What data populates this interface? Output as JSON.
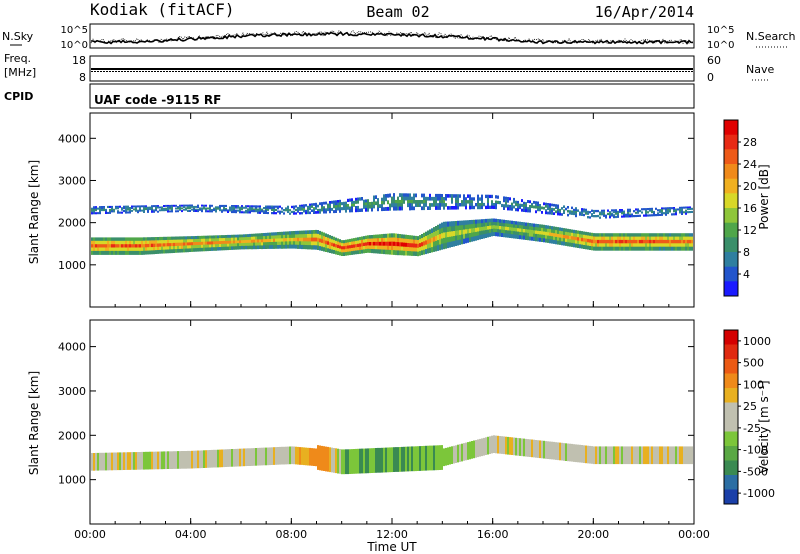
{
  "header": {
    "station": "Kodiak (fitACF)",
    "beam": "Beam 02",
    "date": "16/Apr/2014"
  },
  "noise_panel": {
    "left_label": "N.Sky",
    "right_label": "N.Search",
    "left_ticks": [
      "10^5",
      "10^0"
    ],
    "right_ticks": [
      "10^5",
      "10^0"
    ]
  },
  "freq_panel": {
    "left_label": "Freq.",
    "left_unit": "[MHz]",
    "right_label": "Nave",
    "left_ticks": [
      "18",
      "8"
    ],
    "right_ticks": [
      "60",
      "0"
    ]
  },
  "cpid_panel": {
    "label": "CPID",
    "text": "UAF code -9115 RF"
  },
  "x_axis": {
    "label": "Time UT",
    "ticks": [
      "00:00",
      "04:00",
      "08:00",
      "12:00",
      "16:00",
      "20:00",
      "00:00"
    ]
  },
  "chart_data": [
    {
      "type": "heatmap",
      "name": "power",
      "ylabel": "Slant Range [km]",
      "ylim": [
        0,
        4600
      ],
      "y_ticks": [
        1000,
        2000,
        3000,
        4000
      ],
      "colorbar": {
        "label": "Power [dB]",
        "ticks": [
          "28",
          "24",
          "20",
          "16",
          "12",
          "8",
          "4"
        ],
        "colors": [
          "#1a1aff",
          "#2255cc",
          "#2f7fa0",
          "#3a8f6a",
          "#4fa64a",
          "#8fc63a",
          "#d8d828",
          "#f0b020",
          "#f08a1a",
          "#ee5a18",
          "#e82a14",
          "#e00000"
        ]
      },
      "series": [
        {
          "hours": [
            0,
            2,
            4,
            6,
            8,
            9,
            10,
            11,
            12,
            13,
            14,
            16,
            18,
            20,
            22,
            24
          ],
          "center_km": [
            1450,
            1450,
            1500,
            1550,
            1600,
            1600,
            1400,
            1500,
            1500,
            1450,
            1700,
            1900,
            1750,
            1550,
            1550,
            1550
          ],
          "half_width_km": [
            200,
            200,
            180,
            170,
            200,
            230,
            180,
            200,
            250,
            230,
            320,
            200,
            200,
            200,
            200,
            200
          ],
          "peak": [
            24,
            24,
            22,
            20,
            18,
            22,
            26,
            26,
            28,
            26,
            16,
            14,
            16,
            24,
            24,
            22
          ]
        },
        {
          "hours": [
            0,
            4,
            8,
            12,
            16,
            20,
            24
          ],
          "center_km": [
            2300,
            2350,
            2300,
            2500,
            2500,
            2200,
            2300
          ],
          "half_width_km": [
            90,
            80,
            100,
            200,
            160,
            100,
            90
          ],
          "peak": [
            8,
            8,
            8,
            10,
            8,
            8,
            8
          ]
        }
      ]
    },
    {
      "type": "heatmap",
      "name": "velocity",
      "ylabel": "Slant Range [km]",
      "ylim": [
        0,
        4600
      ],
      "y_ticks": [
        1000,
        2000,
        3000,
        4000
      ],
      "colorbar": {
        "label": "Velocity [m s⁻¹]",
        "ticks": [
          "1000",
          "500",
          "100",
          "25",
          "-25",
          "-100",
          "-500",
          "-1000"
        ],
        "colors": [
          "#1a3fa8",
          "#2b6ea3",
          "#3a8a52",
          "#5aa844",
          "#7cc63a",
          "#c0c0b0",
          "#c0c0b0",
          "#e8b020",
          "#ef8a1a",
          "#ec5a14",
          "#e02a10",
          "#d40000"
        ]
      },
      "series": [
        {
          "hours": [
            0,
            4,
            8,
            9,
            10,
            12,
            14,
            16,
            20,
            24
          ],
          "center_km": [
            1400,
            1450,
            1550,
            1500,
            1400,
            1450,
            1500,
            1800,
            1550,
            1550
          ],
          "velocity_ms": [
            0,
            0,
            0,
            -200,
            80,
            120,
            60,
            0,
            0,
            0
          ]
        }
      ]
    }
  ]
}
